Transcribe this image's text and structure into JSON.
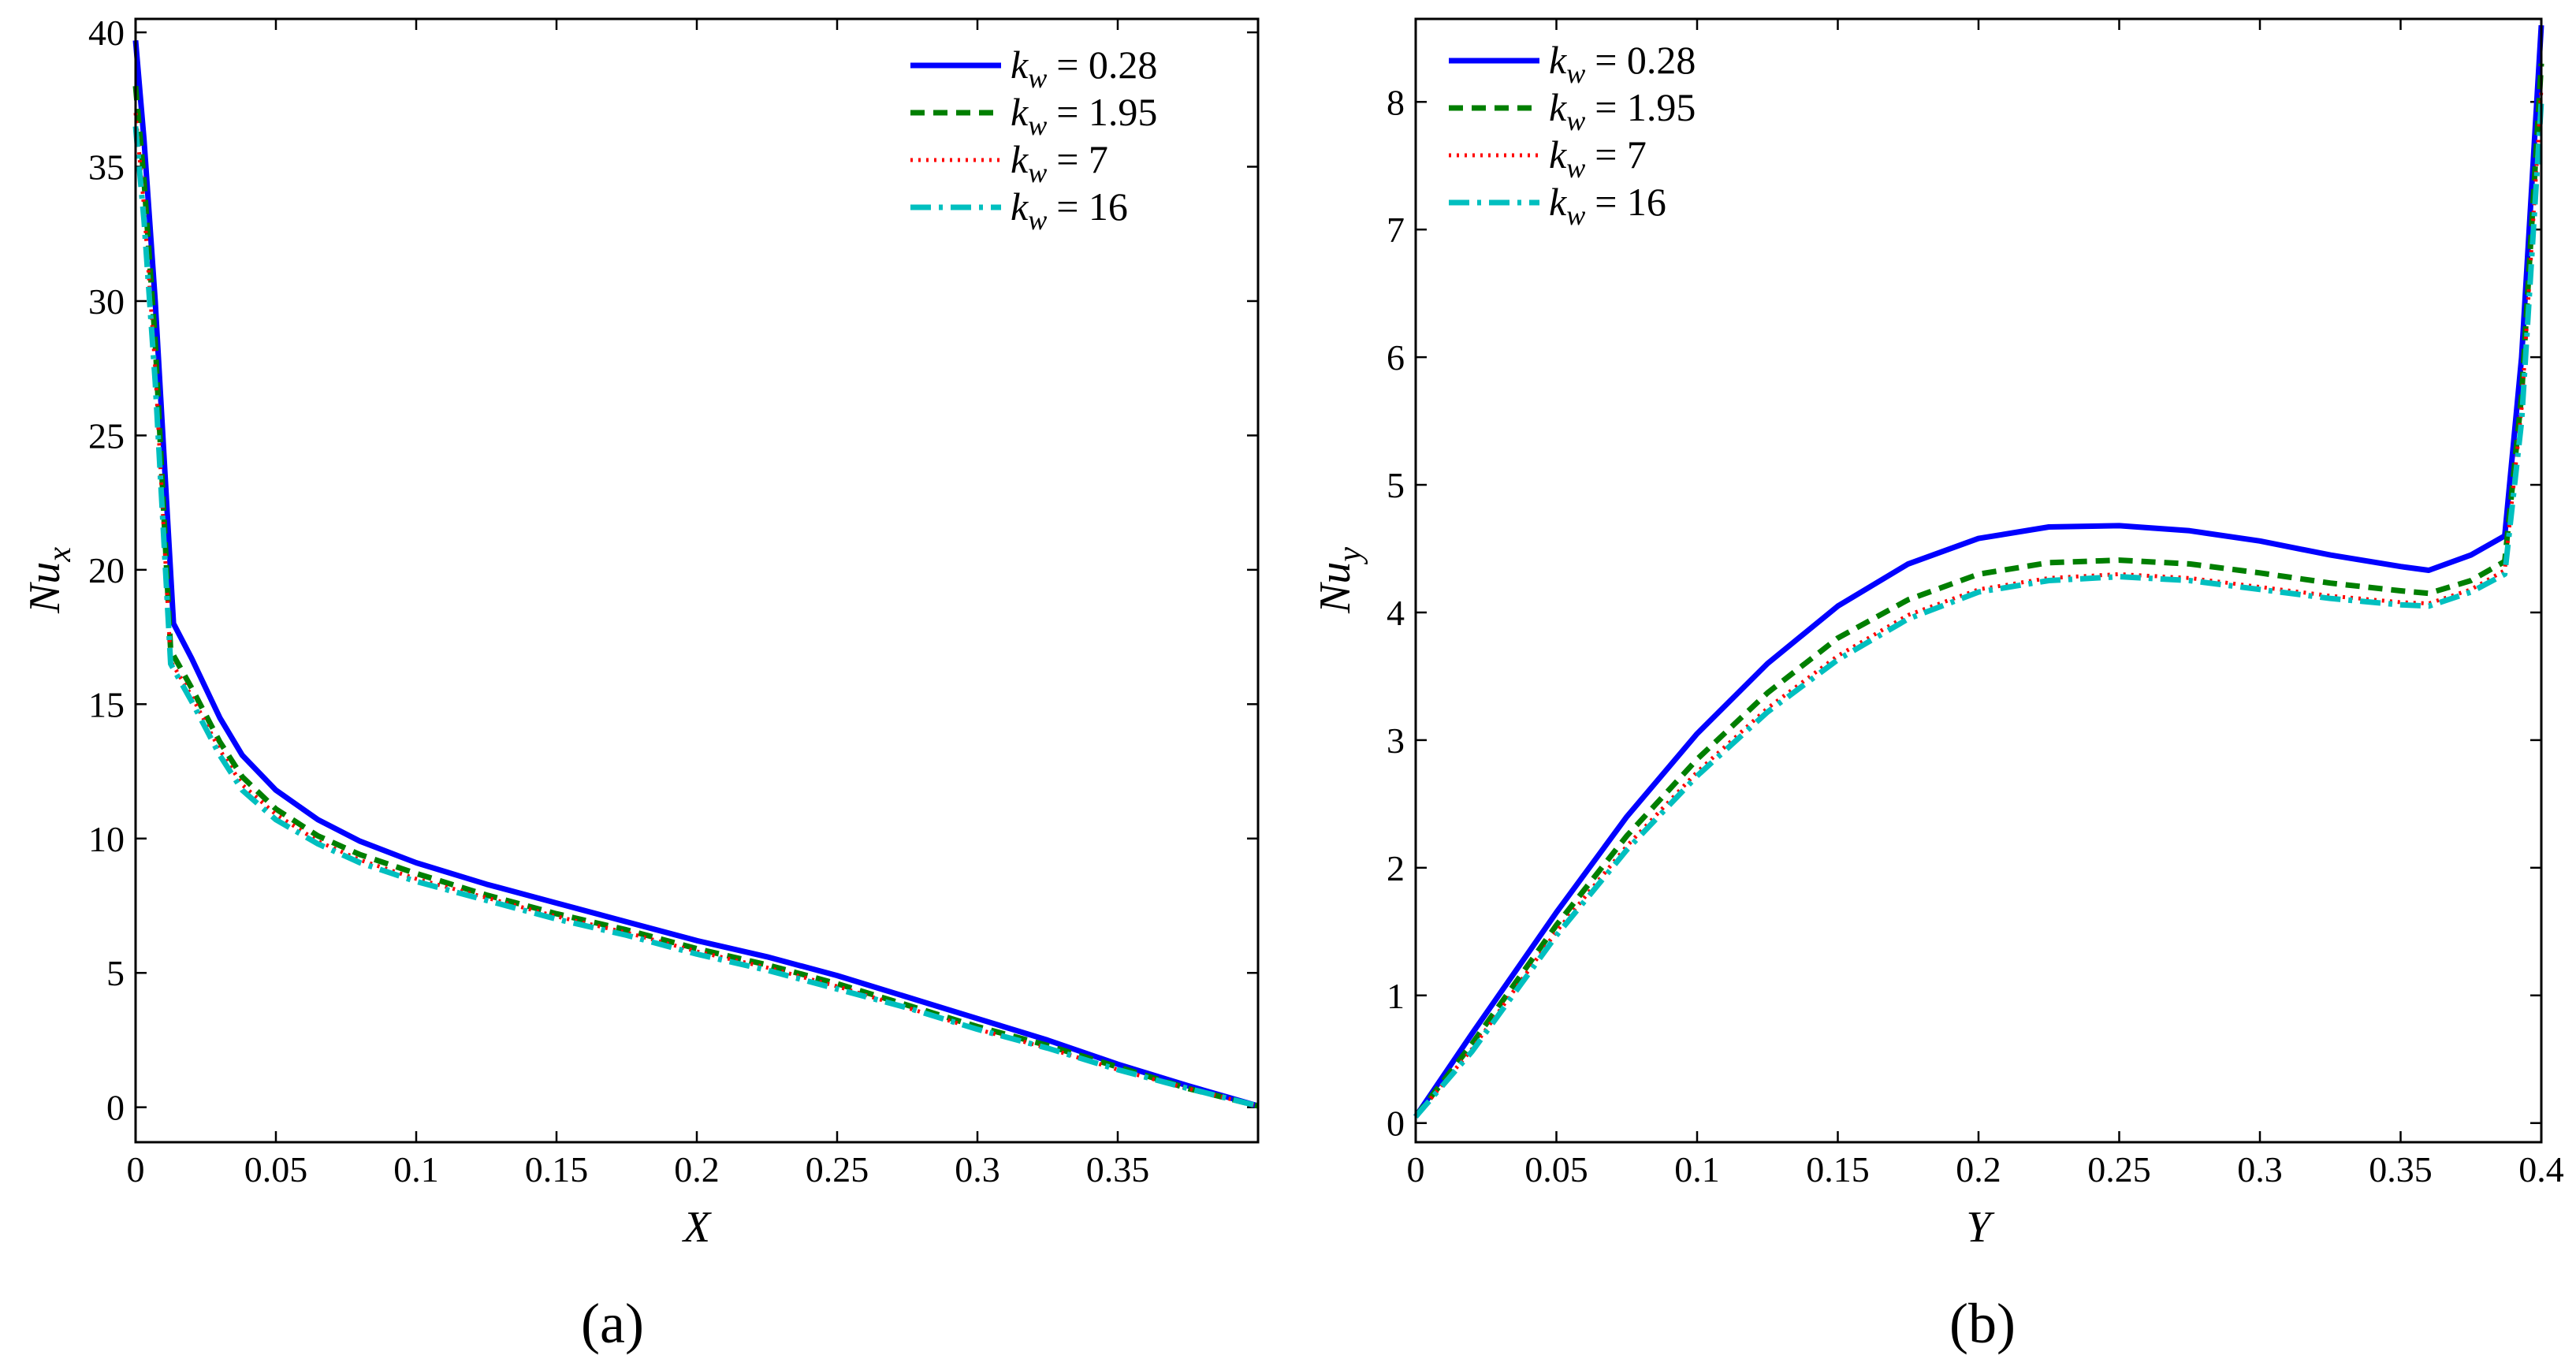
{
  "figure": {
    "colors": {
      "blue": "#0000ff",
      "green": "#007f00",
      "red": "#ff0000",
      "cyan": "#00bfbf",
      "axis": "#000000"
    }
  },
  "chart_data": [
    {
      "type": "line",
      "panel_label": "(a)",
      "xlabel": "X",
      "ylabel_base": "Nu",
      "ylabel_sub": "x",
      "xlim": [
        0,
        0.4
      ],
      "ylim": [
        -1.3,
        40.5
      ],
      "xticks": [
        0,
        0.05,
        0.1,
        0.15,
        0.2,
        0.25,
        0.3,
        0.35
      ],
      "xtick_labels": [
        "0",
        "0.05",
        "0.1",
        "0.15",
        "0.2",
        "0.25",
        "0.3",
        "0.35"
      ],
      "yticks": [
        0,
        5,
        10,
        15,
        20,
        25,
        30,
        35,
        40
      ],
      "ytick_labels": [
        "0",
        "5",
        "10",
        "15",
        "20",
        "25",
        "30",
        "35",
        "40"
      ],
      "legend_position": "top-right",
      "series": [
        {
          "name": "k_w = 0.28",
          "legend_var": "k",
          "legend_sub": "w",
          "legend_value": "= 0.28",
          "color": "#0000ff",
          "style": "solid",
          "x": [
            0,
            0.003,
            0.007,
            0.0135,
            0.02,
            0.03,
            0.038,
            0.05,
            0.065,
            0.08,
            0.1,
            0.125,
            0.15,
            0.175,
            0.2,
            0.225,
            0.25,
            0.275,
            0.3,
            0.325,
            0.35,
            0.375,
            0.4
          ],
          "y": [
            39.7,
            36.0,
            30.0,
            18.0,
            16.7,
            14.5,
            13.1,
            11.8,
            10.7,
            9.9,
            9.1,
            8.3,
            7.6,
            6.9,
            6.2,
            5.6,
            4.9,
            4.1,
            3.3,
            2.5,
            1.6,
            0.8,
            0.05
          ]
        },
        {
          "name": "k_w = 1.95",
          "legend_var": "k",
          "legend_sub": "w",
          "legend_value": "= 1.95",
          "color": "#007f00",
          "style": "dashed",
          "x": [
            0,
            0.003,
            0.007,
            0.0125,
            0.02,
            0.03,
            0.038,
            0.05,
            0.065,
            0.08,
            0.1,
            0.125,
            0.15,
            0.175,
            0.2,
            0.225,
            0.25,
            0.275,
            0.3,
            0.325,
            0.35,
            0.375,
            0.4
          ],
          "y": [
            38.0,
            34.5,
            28.5,
            17.0,
            15.6,
            13.6,
            12.3,
            11.1,
            10.1,
            9.4,
            8.7,
            7.9,
            7.2,
            6.6,
            5.9,
            5.3,
            4.6,
            3.8,
            3.0,
            2.3,
            1.5,
            0.7,
            0.05
          ]
        },
        {
          "name": "k_w = 7",
          "legend_var": "k",
          "legend_sub": "w",
          "legend_value": "= 7",
          "color": "#ff0000",
          "style": "dotted",
          "x": [
            0,
            0.003,
            0.007,
            0.0125,
            0.02,
            0.03,
            0.038,
            0.05,
            0.065,
            0.08,
            0.1,
            0.125,
            0.15,
            0.175,
            0.2,
            0.225,
            0.25,
            0.275,
            0.3,
            0.325,
            0.35,
            0.375,
            0.4
          ],
          "y": [
            37.0,
            33.5,
            27.5,
            16.6,
            15.3,
            13.3,
            12.0,
            10.9,
            9.9,
            9.2,
            8.5,
            7.8,
            7.1,
            6.5,
            5.8,
            5.2,
            4.5,
            3.7,
            2.9,
            2.2,
            1.4,
            0.7,
            0.05
          ]
        },
        {
          "name": "k_w = 16",
          "legend_var": "k",
          "legend_sub": "w",
          "legend_value": "= 16",
          "color": "#00bfbf",
          "style": "dashdot",
          "x": [
            0,
            0.003,
            0.007,
            0.0125,
            0.02,
            0.03,
            0.038,
            0.05,
            0.065,
            0.08,
            0.1,
            0.125,
            0.15,
            0.175,
            0.2,
            0.225,
            0.25,
            0.275,
            0.3,
            0.325,
            0.35,
            0.375,
            0.4
          ],
          "y": [
            36.5,
            33.0,
            27.0,
            16.5,
            15.1,
            13.1,
            11.8,
            10.7,
            9.8,
            9.1,
            8.4,
            7.7,
            7.0,
            6.4,
            5.7,
            5.1,
            4.4,
            3.7,
            2.9,
            2.2,
            1.4,
            0.7,
            0.05
          ]
        }
      ]
    },
    {
      "type": "line",
      "panel_label": "(b)",
      "xlabel": "Y",
      "ylabel_base": "Nu",
      "ylabel_sub": "y",
      "xlim": [
        0,
        0.4
      ],
      "ylim": [
        -0.15,
        8.65
      ],
      "xticks": [
        0,
        0.05,
        0.1,
        0.15,
        0.2,
        0.25,
        0.3,
        0.35,
        0.4
      ],
      "xtick_labels": [
        "0",
        "0.05",
        "0.1",
        "0.15",
        "0.2",
        "0.25",
        "0.3",
        "0.35",
        "0.4"
      ],
      "yticks": [
        0,
        1,
        2,
        3,
        4,
        5,
        6,
        7,
        8
      ],
      "ytick_labels": [
        "0",
        "1",
        "2",
        "3",
        "4",
        "5",
        "6",
        "7",
        "8"
      ],
      "legend_position": "top-left",
      "series": [
        {
          "name": "k_w = 0.28",
          "legend_var": "k",
          "legend_sub": "w",
          "legend_value": "= 0.28",
          "color": "#0000ff",
          "style": "solid",
          "x": [
            0,
            0.02,
            0.05,
            0.075,
            0.1,
            0.125,
            0.15,
            0.175,
            0.2,
            0.225,
            0.25,
            0.275,
            0.3,
            0.325,
            0.35,
            0.36,
            0.375,
            0.387,
            0.393,
            0.4
          ],
          "y": [
            0.05,
            0.7,
            1.65,
            2.4,
            3.05,
            3.6,
            4.05,
            4.38,
            4.58,
            4.67,
            4.68,
            4.64,
            4.56,
            4.45,
            4.36,
            4.33,
            4.45,
            4.6,
            6.0,
            8.6
          ]
        },
        {
          "name": "k_w = 1.95",
          "legend_var": "k",
          "legend_sub": "w",
          "legend_value": "= 1.95",
          "color": "#007f00",
          "style": "dashed",
          "x": [
            0,
            0.02,
            0.05,
            0.075,
            0.1,
            0.125,
            0.15,
            0.175,
            0.2,
            0.225,
            0.25,
            0.275,
            0.3,
            0.325,
            0.35,
            0.36,
            0.375,
            0.387,
            0.393,
            0.4
          ],
          "y": [
            0.05,
            0.62,
            1.55,
            2.25,
            2.85,
            3.37,
            3.8,
            4.1,
            4.3,
            4.39,
            4.41,
            4.38,
            4.31,
            4.23,
            4.17,
            4.15,
            4.25,
            4.4,
            5.7,
            8.3
          ]
        },
        {
          "name": "k_w = 7",
          "legend_var": "k",
          "legend_sub": "w",
          "legend_value": "= 7",
          "color": "#ff0000",
          "style": "dotted",
          "x": [
            0,
            0.02,
            0.05,
            0.075,
            0.1,
            0.125,
            0.15,
            0.175,
            0.2,
            0.225,
            0.25,
            0.275,
            0.3,
            0.325,
            0.35,
            0.36,
            0.375,
            0.387,
            0.393,
            0.4
          ],
          "y": [
            0.05,
            0.58,
            1.5,
            2.17,
            2.75,
            3.25,
            3.66,
            3.98,
            4.18,
            4.27,
            4.3,
            4.27,
            4.2,
            4.13,
            4.08,
            4.07,
            4.18,
            4.33,
            5.6,
            8.1
          ]
        },
        {
          "name": "k_w = 16",
          "legend_var": "k",
          "legend_sub": "w",
          "legend_value": "= 16",
          "color": "#00bfbf",
          "style": "dashdot",
          "x": [
            0,
            0.02,
            0.05,
            0.075,
            0.1,
            0.125,
            0.15,
            0.175,
            0.2,
            0.225,
            0.25,
            0.275,
            0.3,
            0.325,
            0.35,
            0.36,
            0.375,
            0.387,
            0.393,
            0.4
          ],
          "y": [
            0.05,
            0.56,
            1.47,
            2.14,
            2.72,
            3.22,
            3.63,
            3.95,
            4.16,
            4.25,
            4.28,
            4.25,
            4.18,
            4.11,
            4.06,
            4.05,
            4.16,
            4.3,
            5.5,
            8.0
          ]
        }
      ]
    }
  ]
}
